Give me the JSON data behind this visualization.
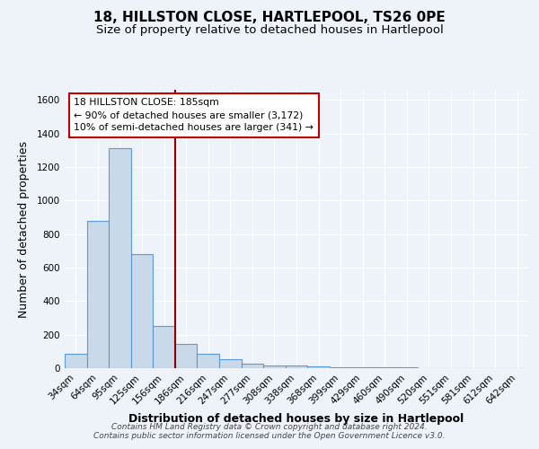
{
  "title": "18, HILLSTON CLOSE, HARTLEPOOL, TS26 0PE",
  "subtitle": "Size of property relative to detached houses in Hartlepool",
  "xlabel": "Distribution of detached houses by size in Hartlepool",
  "ylabel": "Number of detached properties",
  "footer_lines": [
    "Contains HM Land Registry data © Crown copyright and database right 2024.",
    "Contains public sector information licensed under the Open Government Licence v3.0."
  ],
  "bin_labels": [
    "34sqm",
    "64sqm",
    "95sqm",
    "125sqm",
    "156sqm",
    "186sqm",
    "216sqm",
    "247sqm",
    "277sqm",
    "308sqm",
    "338sqm",
    "368sqm",
    "399sqm",
    "429sqm",
    "460sqm",
    "490sqm",
    "520sqm",
    "551sqm",
    "581sqm",
    "612sqm",
    "642sqm"
  ],
  "bin_counts": [
    88,
    880,
    1310,
    680,
    252,
    143,
    88,
    55,
    27,
    18,
    15,
    10,
    8,
    5,
    4,
    3,
    0,
    0,
    0,
    0,
    0
  ],
  "bar_color": "#c9d9ea",
  "bar_edge_color": "#5b9bd5",
  "vline_color": "#8b0000",
  "vline_index": 5,
  "ylim": [
    0,
    1660
  ],
  "yticks": [
    0,
    200,
    400,
    600,
    800,
    1000,
    1200,
    1400,
    1600
  ],
  "annotation_title": "18 HILLSTON CLOSE: 185sqm",
  "annotation_line1": "← 90% of detached houses are smaller (3,172)",
  "annotation_line2": "10% of semi-detached houses are larger (341) →",
  "annotation_box_color": "#ffffff",
  "annotation_border_color": "#c00000",
  "background_color": "#eef2f9",
  "grid_color": "#ffffff",
  "title_fontsize": 11,
  "subtitle_fontsize": 9.5,
  "axis_label_fontsize": 9,
  "tick_fontsize": 7.5,
  "footer_fontsize": 6.5
}
